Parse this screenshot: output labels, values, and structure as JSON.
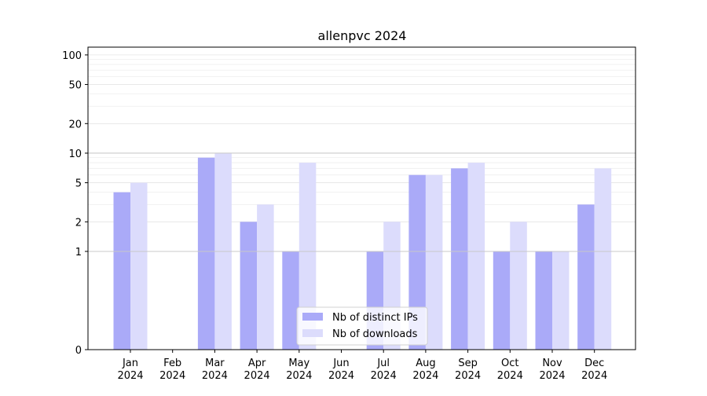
{
  "chart_data": {
    "type": "bar",
    "title": "allenpvc 2024",
    "xlabel": "",
    "ylabel": "",
    "categories": [
      [
        "Jan",
        "2024"
      ],
      [
        "Feb",
        "2024"
      ],
      [
        "Mar",
        "2024"
      ],
      [
        "Apr",
        "2024"
      ],
      [
        "May",
        "2024"
      ],
      [
        "Jun",
        "2024"
      ],
      [
        "Jul",
        "2024"
      ],
      [
        "Aug",
        "2024"
      ],
      [
        "Sep",
        "2024"
      ],
      [
        "Oct",
        "2024"
      ],
      [
        "Nov",
        "2024"
      ],
      [
        "Dec",
        "2024"
      ]
    ],
    "series": [
      {
        "name": "Nb of distinct IPs",
        "color": "#aaaaf8",
        "values": [
          4,
          0,
          9,
          2,
          1,
          0,
          1,
          6,
          7,
          1,
          1,
          3
        ]
      },
      {
        "name": "Nb of downloads",
        "color": "#dcdcfc",
        "values": [
          5,
          0,
          10,
          3,
          8,
          0,
          2,
          6,
          8,
          2,
          1,
          7
        ]
      }
    ],
    "y_scale": "symlog",
    "ylim": [
      0,
      120
    ],
    "y_ticks": [
      "0",
      "1",
      "2",
      "5",
      "10",
      "20",
      "50",
      "100"
    ],
    "grid": true,
    "legend_position": "lower-center"
  }
}
